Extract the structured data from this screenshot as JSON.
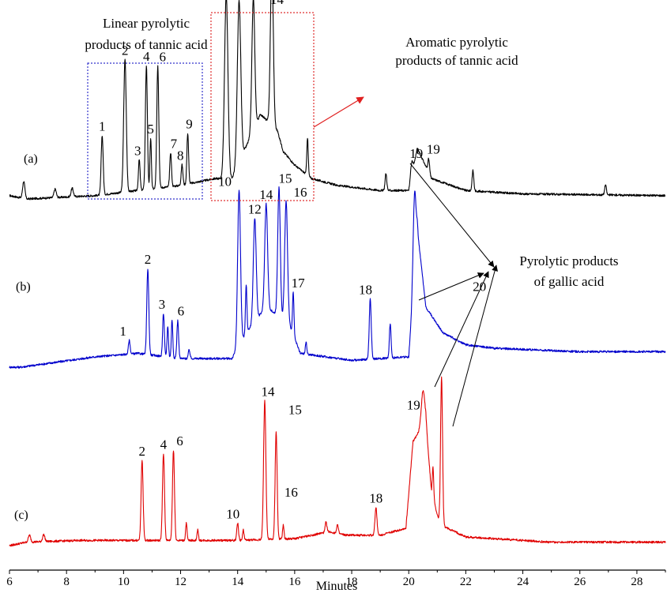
{
  "chart_data": {
    "type": "line",
    "xlabel": "Minutes",
    "xlim": [
      6,
      29
    ],
    "x_ticks": [
      "6",
      "8",
      "10",
      "12",
      "14",
      "16",
      "18",
      "20",
      "22",
      "24",
      "26",
      "28"
    ],
    "grid": false,
    "series": [
      {
        "key": "a",
        "label": "(a)",
        "color": "#000000",
        "baseline": [
          [
            6.0,
            0.02
          ],
          [
            6.6,
            0.0
          ],
          [
            9.0,
            0.02
          ],
          [
            10.5,
            0.05
          ],
          [
            12.0,
            0.08
          ],
          [
            13.2,
            0.12
          ],
          [
            13.8,
            0.12
          ],
          [
            14.8,
            0.5
          ],
          [
            15.4,
            0.4
          ],
          [
            15.6,
            0.28
          ],
          [
            16.0,
            0.2
          ],
          [
            16.6,
            0.12
          ],
          [
            17.5,
            0.08
          ],
          [
            19.0,
            0.05
          ],
          [
            20.0,
            0.05
          ],
          [
            20.3,
            0.3
          ],
          [
            20.8,
            0.12
          ],
          [
            22.0,
            0.05
          ],
          [
            24.0,
            0.03
          ],
          [
            29.0,
            0.02
          ]
        ],
        "peaks": [
          {
            "x": 6.5,
            "h": 0.1,
            "w": 0.04
          },
          {
            "x": 7.6,
            "h": 0.05,
            "w": 0.04
          },
          {
            "x": 8.2,
            "h": 0.05,
            "w": 0.04
          },
          {
            "x": 9.25,
            "h": 0.35,
            "w": 0.035,
            "label": "1"
          },
          {
            "x": 10.05,
            "h": 0.78,
            "w": 0.045,
            "label": "2"
          },
          {
            "x": 10.55,
            "h": 0.18,
            "w": 0.03,
            "label": "3"
          },
          {
            "x": 10.8,
            "h": 0.73,
            "w": 0.035,
            "label": "4"
          },
          {
            "x": 10.95,
            "h": 0.3,
            "w": 0.025,
            "label": "5"
          },
          {
            "x": 11.2,
            "h": 0.72,
            "w": 0.035,
            "label": "6"
          },
          {
            "x": 11.65,
            "h": 0.2,
            "w": 0.03,
            "label": "7"
          },
          {
            "x": 12.05,
            "h": 0.12,
            "w": 0.03,
            "label": "8"
          },
          {
            "x": 12.25,
            "h": 0.3,
            "w": 0.03,
            "label": "9"
          },
          {
            "x": 13.6,
            "h": 1.08,
            "w": 0.06,
            "label": "10"
          },
          {
            "x": 14.05,
            "h": 0.95,
            "w": 0.06,
            "label": "12"
          },
          {
            "x": 14.55,
            "h": 0.78,
            "w": 0.05,
            "label": "14"
          },
          {
            "x": 15.2,
            "h": 0.97,
            "w": 0.05,
            "label": "16"
          },
          {
            "x": 16.45,
            "h": 0.22,
            "w": 0.025
          },
          {
            "x": 19.2,
            "h": 0.1,
            "w": 0.03
          },
          {
            "x": 20.1,
            "h": 0.08,
            "w": 0.04,
            "label": "19"
          },
          {
            "x": 20.7,
            "h": 0.08,
            "w": 0.03
          },
          {
            "x": 22.25,
            "h": 0.12,
            "w": 0.03
          },
          {
            "x": 26.9,
            "h": 0.06,
            "w": 0.03
          }
        ]
      },
      {
        "key": "b",
        "label": "(b)",
        "color": "#0000cc",
        "baseline": [
          [
            6.0,
            0.0
          ],
          [
            6.4,
            0.0
          ],
          [
            9.0,
            0.06
          ],
          [
            10.5,
            0.08
          ],
          [
            12.0,
            0.05
          ],
          [
            13.8,
            0.05
          ],
          [
            14.3,
            0.2
          ],
          [
            15.0,
            0.35
          ],
          [
            15.8,
            0.25
          ],
          [
            16.2,
            0.08
          ],
          [
            18.0,
            0.04
          ],
          [
            20.0,
            0.06
          ],
          [
            20.3,
            0.8
          ],
          [
            20.6,
            0.35
          ],
          [
            21.2,
            0.2
          ],
          [
            22.0,
            0.13
          ],
          [
            23.0,
            0.11
          ],
          [
            26.0,
            0.09
          ],
          [
            29.0,
            0.09
          ]
        ],
        "peaks": [
          {
            "x": 10.2,
            "h": 0.08,
            "w": 0.03,
            "label": "1"
          },
          {
            "x": 10.85,
            "h": 0.5,
            "w": 0.035,
            "label": "2"
          },
          {
            "x": 11.4,
            "h": 0.25,
            "w": 0.03,
            "label": "3"
          },
          {
            "x": 11.55,
            "h": 0.18,
            "w": 0.025
          },
          {
            "x": 11.7,
            "h": 0.22,
            "w": 0.025
          },
          {
            "x": 11.9,
            "h": 0.22,
            "w": 0.03,
            "label": "6"
          },
          {
            "x": 12.3,
            "h": 0.05,
            "w": 0.03
          },
          {
            "x": 14.05,
            "h": 0.9,
            "w": 0.05,
            "label": "10"
          },
          {
            "x": 14.3,
            "h": 0.28,
            "w": 0.025
          },
          {
            "x": 14.6,
            "h": 0.6,
            "w": 0.05,
            "label": "12"
          },
          {
            "x": 15.0,
            "h": 0.6,
            "w": 0.05,
            "label": "14"
          },
          {
            "x": 15.45,
            "h": 0.75,
            "w": 0.045,
            "label": "15"
          },
          {
            "x": 15.7,
            "h": 0.7,
            "w": 0.05,
            "label": "16"
          },
          {
            "x": 15.95,
            "h": 0.25,
            "w": 0.025,
            "label": "17"
          },
          {
            "x": 16.4,
            "h": 0.07,
            "w": 0.025
          },
          {
            "x": 18.65,
            "h": 0.35,
            "w": 0.035,
            "label": "18"
          },
          {
            "x": 19.35,
            "h": 0.2,
            "w": 0.03
          },
          {
            "x": 20.2,
            "h": 0.45,
            "w": 0.05,
            "label": "19"
          }
        ]
      },
      {
        "key": "c",
        "label": "(c)",
        "color": "#e00000",
        "baseline": [
          [
            6.0,
            0.0
          ],
          [
            6.6,
            0.02
          ],
          [
            8.5,
            0.03
          ],
          [
            10.0,
            0.03
          ],
          [
            12.0,
            0.03
          ],
          [
            14.0,
            0.03
          ],
          [
            16.0,
            0.04
          ],
          [
            17.2,
            0.08
          ],
          [
            17.8,
            0.06
          ],
          [
            19.0,
            0.06
          ],
          [
            19.9,
            0.1
          ],
          [
            20.15,
            0.6
          ],
          [
            20.6,
            0.72
          ],
          [
            20.8,
            0.3
          ],
          [
            21.1,
            0.12
          ],
          [
            22.0,
            0.05
          ],
          [
            24.0,
            0.03
          ],
          [
            25.0,
            0.02
          ],
          [
            29.0,
            0.02
          ]
        ],
        "peaks": [
          {
            "x": 6.7,
            "h": 0.04,
            "w": 0.04
          },
          {
            "x": 7.2,
            "h": 0.04,
            "w": 0.04
          },
          {
            "x": 10.65,
            "h": 0.46,
            "w": 0.035,
            "label": "2"
          },
          {
            "x": 11.4,
            "h": 0.5,
            "w": 0.035,
            "label": "4"
          },
          {
            "x": 11.75,
            "h": 0.52,
            "w": 0.035,
            "label": "6"
          },
          {
            "x": 12.2,
            "h": 0.1,
            "w": 0.025
          },
          {
            "x": 12.6,
            "h": 0.06,
            "w": 0.025
          },
          {
            "x": 14.0,
            "h": 0.1,
            "w": 0.03,
            "label": "10"
          },
          {
            "x": 14.2,
            "h": 0.06,
            "w": 0.025
          },
          {
            "x": 14.95,
            "h": 0.8,
            "w": 0.04,
            "label": "14"
          },
          {
            "x": 15.35,
            "h": 0.62,
            "w": 0.035,
            "label": "15"
          },
          {
            "x": 15.6,
            "h": 0.08,
            "w": 0.025,
            "label": "16"
          },
          {
            "x": 17.1,
            "h": 0.06,
            "w": 0.03
          },
          {
            "x": 17.5,
            "h": 0.05,
            "w": 0.03
          },
          {
            "x": 18.85,
            "h": 0.16,
            "w": 0.035,
            "label": "18"
          },
          {
            "x": 20.5,
            "h": 0.2,
            "w": 0.06,
            "label": "19"
          },
          {
            "x": 20.85,
            "h": 0.18,
            "w": 0.025
          },
          {
            "x": 21.15,
            "h": 0.85,
            "w": 0.035,
            "label": "20"
          }
        ]
      }
    ],
    "annotations": [
      {
        "key": "linear",
        "lines": [
          "Linear pyrolytic",
          "products of tannic acid"
        ]
      },
      {
        "key": "aromatic",
        "lines": [
          "Aromatic pyrolytic",
          "products of tannic acid"
        ]
      },
      {
        "key": "gallic",
        "lines": [
          "Pyrolytic products",
          "of  gallic  acid"
        ]
      }
    ]
  }
}
